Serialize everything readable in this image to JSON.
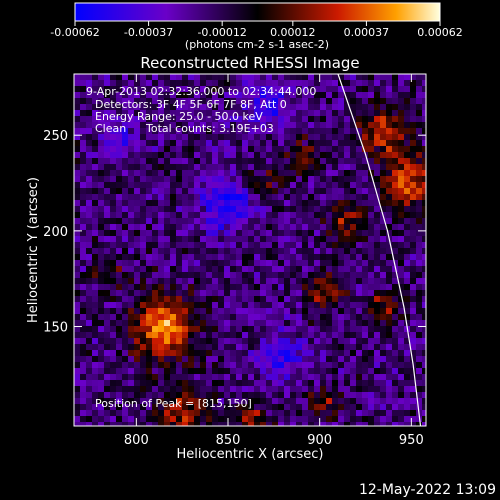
{
  "chart_data": {
    "type": "heatmap",
    "title": "Reconstructed RHESSI Image",
    "xlabel": "Heliocentric X (arcsec)",
    "ylabel": "Heliocentric Y (arcsec)",
    "xlim": [
      766,
      958
    ],
    "ylim": [
      98,
      282
    ],
    "x_ticks": [
      "800",
      "850",
      "900",
      "950"
    ],
    "y_ticks": [
      "150",
      "200",
      "250"
    ],
    "x_tick_values": [
      800,
      850,
      900,
      950
    ],
    "y_tick_values": [
      150,
      200,
      250
    ],
    "colorbar": {
      "tick_labels": [
        "-0.00062",
        "-0.00037",
        "-0.00012",
        "0.00012",
        "0.00037",
        "0.00062"
      ],
      "tick_values": [
        -0.00062,
        -0.00037,
        -0.00012,
        0.00012,
        0.00037,
        0.00062
      ],
      "unit_label": "(photons cm-2 s-1 asec-2)",
      "range": [
        -0.00062,
        0.00062
      ]
    },
    "annotations": {
      "time": "9-Apr-2013 02:32:36.000 to 02:34:44.000",
      "detectors": "Detectors: 3F 4F 5F 6F 7F 8F, Att 0",
      "energy": "Energy Range: 25.0 - 50.0 keV",
      "clean": "Clean",
      "counts": "Total counts: 3.19E+03",
      "peak": "Position of Peak = [815,150]"
    },
    "peak": {
      "x": 815,
      "y": 150
    },
    "sources": [
      {
        "x": 815,
        "y": 150,
        "radius": 12,
        "amplitude": 0.00062
      },
      {
        "x": 948,
        "y": 225,
        "radius": 10,
        "amplitude": 0.0005
      },
      {
        "x": 935,
        "y": 252,
        "radius": 9,
        "amplitude": 0.00044
      },
      {
        "x": 903,
        "y": 168,
        "radius": 7,
        "amplitude": 0.00038
      },
      {
        "x": 915,
        "y": 205,
        "radius": 8,
        "amplitude": 0.00032
      },
      {
        "x": 935,
        "y": 160,
        "radius": 6,
        "amplitude": 0.00034
      },
      {
        "x": 825,
        "y": 104,
        "radius": 9,
        "amplitude": 0.0004
      },
      {
        "x": 862,
        "y": 102,
        "radius": 7,
        "amplitude": 0.0003
      },
      {
        "x": 903,
        "y": 110,
        "radius": 6,
        "amplitude": 0.00028
      },
      {
        "x": 870,
        "y": 225,
        "radius": 7,
        "amplitude": 0.00024
      },
      {
        "x": 785,
        "y": 178,
        "radius": 6,
        "amplitude": 0.00022
      },
      {
        "x": 890,
        "y": 240,
        "radius": 7,
        "amplitude": 0.0002
      },
      {
        "x": 850,
        "y": 215,
        "radius": 10,
        "amplitude": -0.0004
      },
      {
        "x": 870,
        "y": 265,
        "radius": 9,
        "amplitude": -0.0003
      },
      {
        "x": 880,
        "y": 135,
        "radius": 9,
        "amplitude": -0.00028
      },
      {
        "x": 790,
        "y": 250,
        "radius": 8,
        "amplitude": -0.00022
      }
    ],
    "limb_line": [
      {
        "x": 910,
        "y": 282
      },
      {
        "x": 925,
        "y": 240
      },
      {
        "x": 937,
        "y": 200
      },
      {
        "x": 946,
        "y": 160
      },
      {
        "x": 951,
        "y": 130
      },
      {
        "x": 955,
        "y": 98
      }
    ],
    "grid": false
  },
  "footer": {
    "timestamp": "12-May-2022 13:09"
  }
}
